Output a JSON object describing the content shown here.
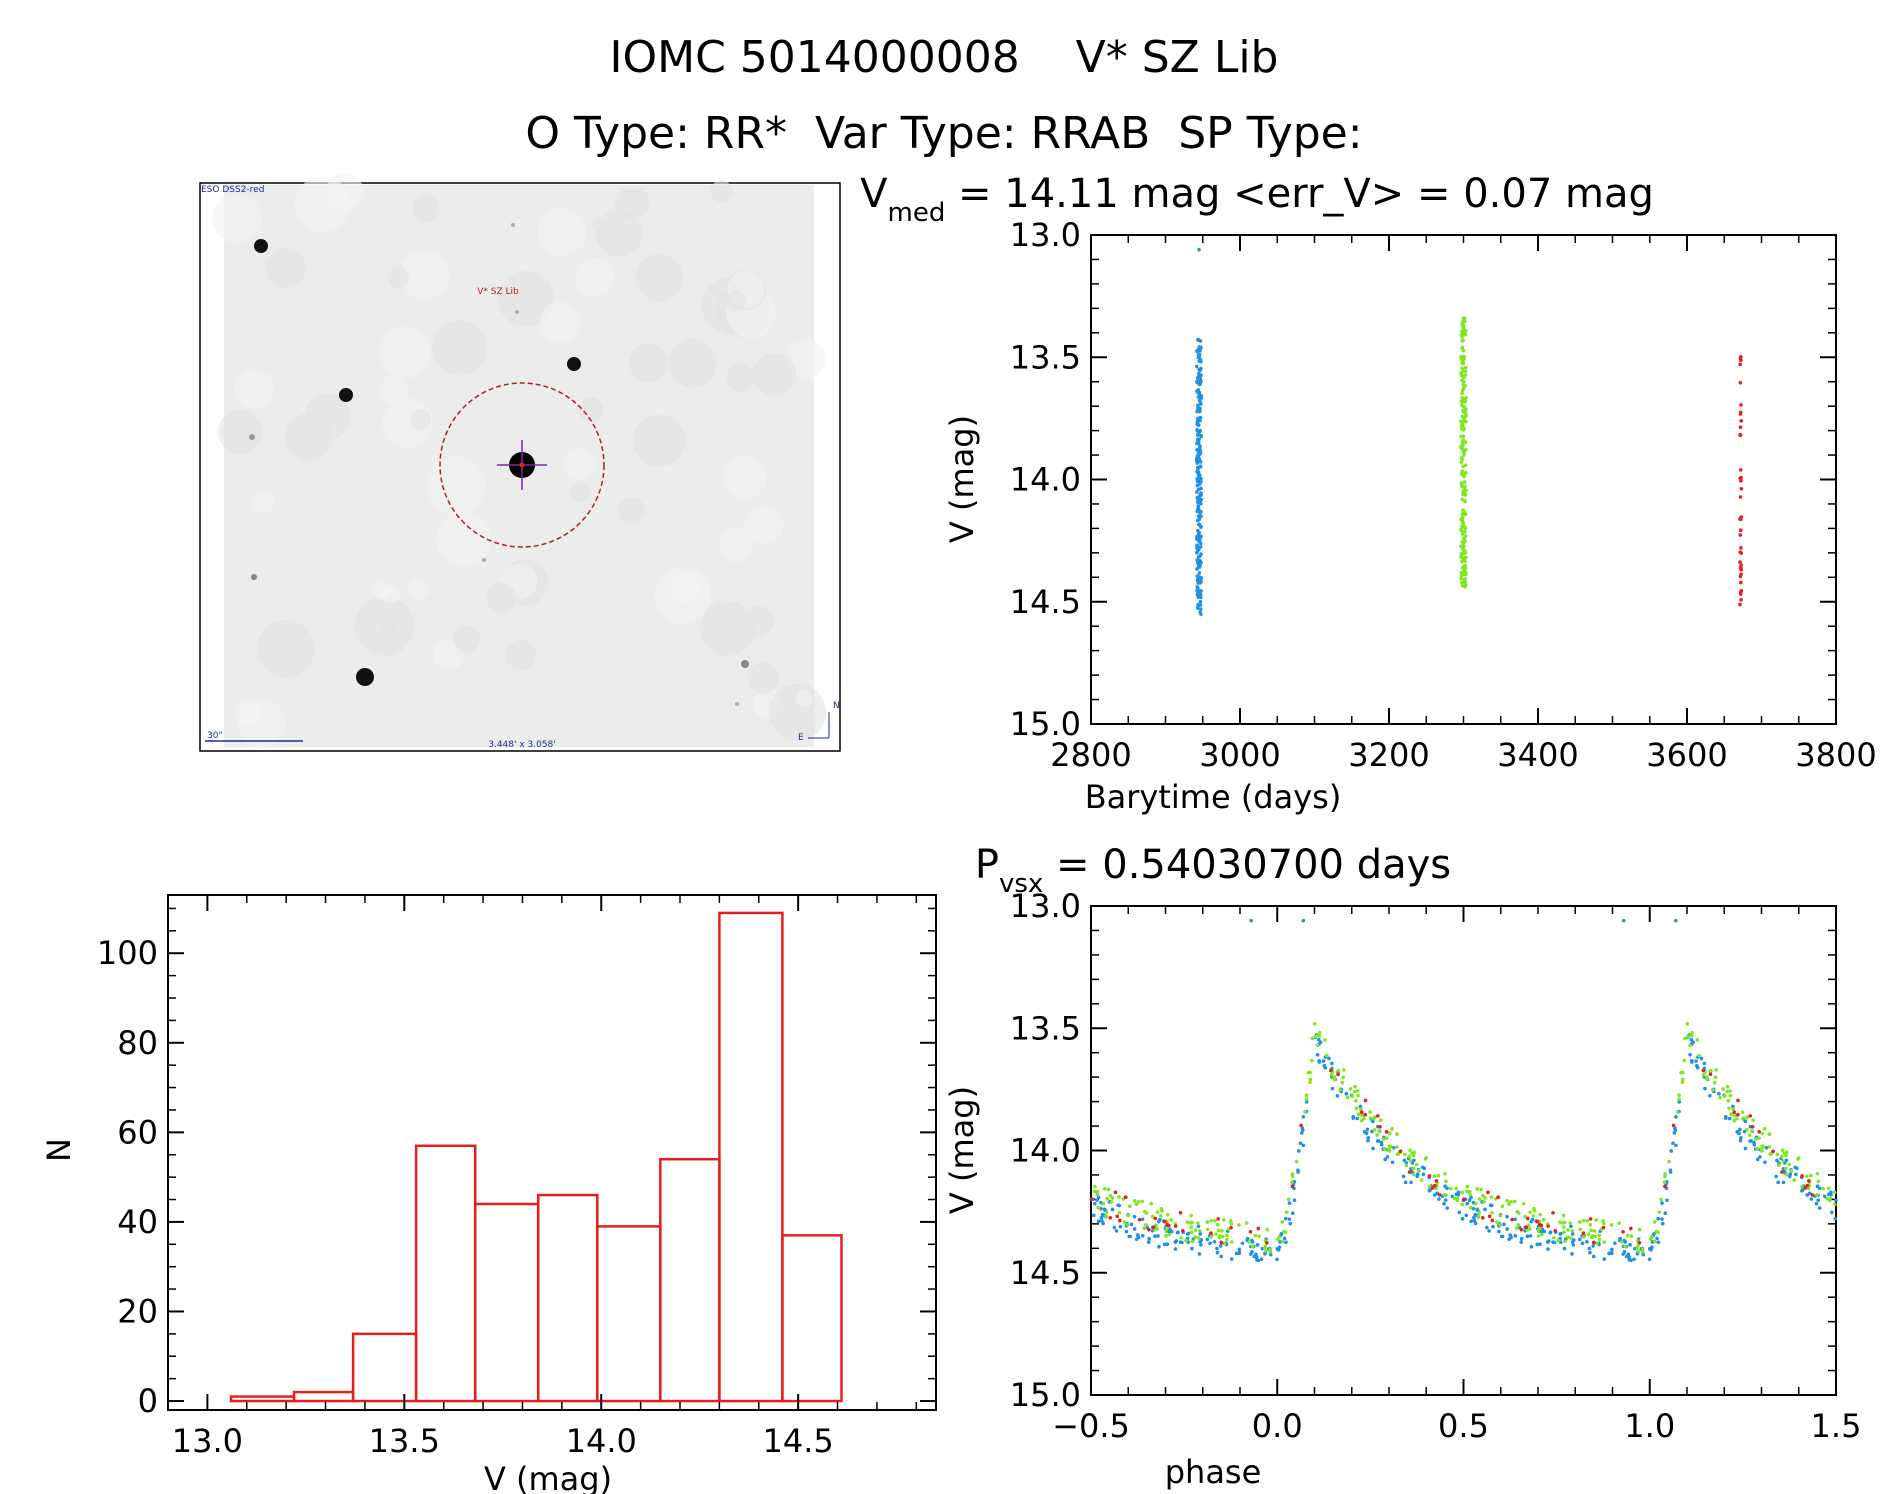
{
  "header": {
    "title": "IOMC 5014000008    V* SZ Lib",
    "subtitle": "O Type: RR*  Var Type: RRAB  SP Type:"
  },
  "sky_image": {
    "survey_label": "ESO DSS2-red",
    "target_label": "V* SZ Lib",
    "scale_label": "30\"",
    "fov_label": "3.448' x 3.058'",
    "north_label": "N",
    "east_label": "E"
  },
  "colors": {
    "series_1": "#1e90e8",
    "series_2": "#7ee81e",
    "series_3": "#e81e1e",
    "histogram": "#e81e1e",
    "marker_circle": "#aa2222",
    "crosshair": "#8822aa"
  },
  "chart_data": [
    {
      "id": "light_curve",
      "type": "scatter",
      "title_main": "V",
      "title_sub": "med",
      "title_rest": " = 14.11 mag <err_V> = 0.07 mag",
      "xlabel": "Barytime (days)",
      "ylabel": "V (mag)",
      "xlim": [
        2800,
        3800
      ],
      "ylim": [
        15.0,
        13.0
      ],
      "y_inverted": true,
      "xticks": [
        "2800",
        "3000",
        "3200",
        "3400",
        "3600",
        "3800"
      ],
      "yticks": [
        "13.0",
        "13.5",
        "14.0",
        "14.5",
        "15.0"
      ],
      "series": [
        {
          "x_center": 2945,
          "x_spread": 6,
          "y_min": 13.42,
          "y_max": 14.56,
          "count": 240,
          "outliers": [
            [
              2945,
              13.06
            ]
          ]
        },
        {
          "x_center": 3300,
          "x_spread": 7,
          "y_min": 13.34,
          "y_max": 14.44,
          "count": 200,
          "outliers": []
        },
        {
          "x_center": 3672,
          "x_spread": 2,
          "y_min": 13.45,
          "y_max": 14.52,
          "count": 40,
          "outliers": []
        }
      ]
    },
    {
      "id": "histogram",
      "type": "bar",
      "xlabel": "V (mag)",
      "ylabel": "N",
      "xlim": [
        12.9,
        14.85
      ],
      "ylim": [
        -2,
        113
      ],
      "xticks": [
        "13.0",
        "13.5",
        "14.0",
        "14.5"
      ],
      "yticks": [
        "0",
        "20",
        "40",
        "60",
        "80",
        "100"
      ],
      "bin_edges": [
        13.06,
        13.22,
        13.37,
        13.53,
        13.68,
        13.84,
        13.99,
        14.15,
        14.3,
        14.46,
        14.61
      ],
      "counts": [
        1,
        2,
        15,
        57,
        44,
        46,
        39,
        54,
        109,
        37
      ]
    },
    {
      "id": "phased_curve",
      "type": "scatter",
      "title_main": "P",
      "title_sub": "vsx",
      "title_rest": " = 0.54030700 days",
      "xlabel": "phase",
      "ylabel": "V (mag)",
      "xlim": [
        -0.5,
        1.5
      ],
      "ylim": [
        15.0,
        13.0
      ],
      "y_inverted": true,
      "xticks": [
        "−0.5",
        "0.0",
        "0.5",
        "1.0",
        "1.5"
      ],
      "yticks": [
        "13.0",
        "13.5",
        "14.0",
        "14.5",
        "15.0"
      ],
      "period_days": 0.540307,
      "shape": {
        "min_mag": 14.38,
        "max_mag": 13.52,
        "rise_phase": 0.1
      },
      "outliers": [
        [
          0.07,
          13.06
        ],
        [
          -0.07,
          13.06
        ]
      ]
    }
  ]
}
